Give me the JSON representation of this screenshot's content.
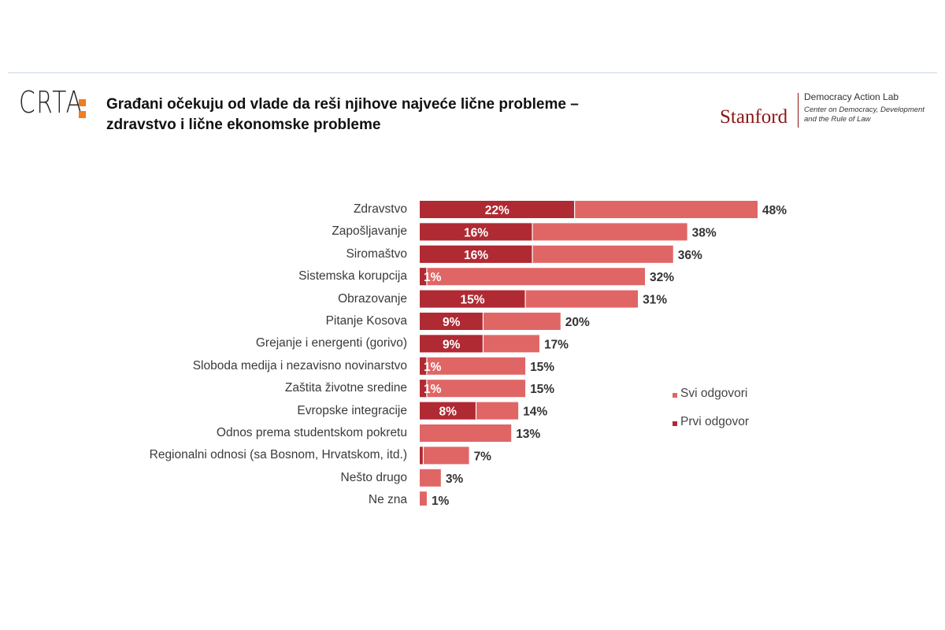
{
  "header": {
    "logo_text": "CRTA",
    "title_line1": "Građani očekuju od vlade da reši njihove najveće lične probleme –",
    "title_line2": "zdravstvo i lične ekonomske probleme",
    "stanford_word": "Stanford",
    "stanford_lab": "Democracy Action Lab",
    "stanford_sub1": "Center on Democracy, Development",
    "stanford_sub2": "and the Rule of Law"
  },
  "colors": {
    "svi": "#e06666",
    "prvi": "#b02a33",
    "logo_accent": "#ef7d22",
    "stanford": "#8c1515"
  },
  "chart_data": {
    "type": "bar",
    "orientation": "horizontal",
    "stacked_overlay": true,
    "categories": [
      "Zdravstvo",
      "Zapošljavanje",
      "Siromaštvo",
      "Sistemska korupcija",
      "Obrazovanje",
      "Pitanje Kosova",
      "Grejanje i energenti (gorivo)",
      "Sloboda medija i nezavisno novinarstvo",
      "Zaštita životne sredine",
      "Evropske integracije",
      "Odnos prema studentskom pokretu",
      "Regionalni odnosi (sa Bosnom, Hrvatskom, itd.)",
      "Nešto drugo",
      "Ne zna"
    ],
    "series": [
      {
        "name": "Svi odgovori",
        "values": [
          48,
          38,
          36,
          32,
          31,
          20,
          17,
          15,
          15,
          14,
          13,
          7,
          3,
          1
        ],
        "labels": [
          "48%",
          "38%",
          "36%",
          "32%",
          "31%",
          "20%",
          "17%",
          "15%",
          "15%",
          "14%",
          "13%",
          "7%",
          "3%",
          "1%"
        ]
      },
      {
        "name": "Prvi odgovor",
        "values": [
          22,
          16,
          16,
          1,
          15,
          9,
          9,
          1,
          1,
          8,
          0,
          0.5,
          0,
          0
        ],
        "labels": [
          "22%",
          "16%",
          "16%",
          "1%",
          "15%",
          "9%",
          "9%",
          "1%",
          "1%",
          "8%",
          "",
          "",
          "",
          ""
        ]
      }
    ],
    "legend": [
      "Svi odgovori",
      "Prvi odgovor"
    ],
    "legend_position": "right",
    "xlim": [
      0,
      50
    ],
    "grid": false
  }
}
